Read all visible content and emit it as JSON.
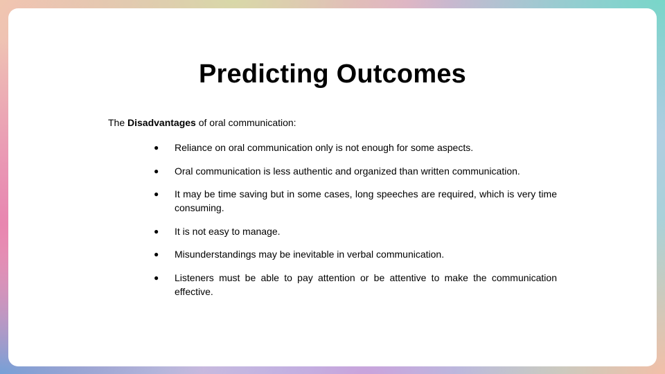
{
  "slide": {
    "title": "Predicting Outcomes",
    "intro": {
      "prefix": "The ",
      "emphasis": "Disadvantages",
      "suffix": " of oral communication:"
    },
    "bullet_marker": "●",
    "bullets": [
      "Reliance on oral communication only is not enough for some aspects.",
      "Oral communication is less authentic and organized than written communication.",
      "It may be time saving but in some cases, long speeches are required, which is very time consuming.",
      "It is not easy to manage.",
      "Misunderstandings may be inevitable in verbal communication.",
      "Listeners must be able to pay attention or be attentive to make the communication effective."
    ]
  }
}
